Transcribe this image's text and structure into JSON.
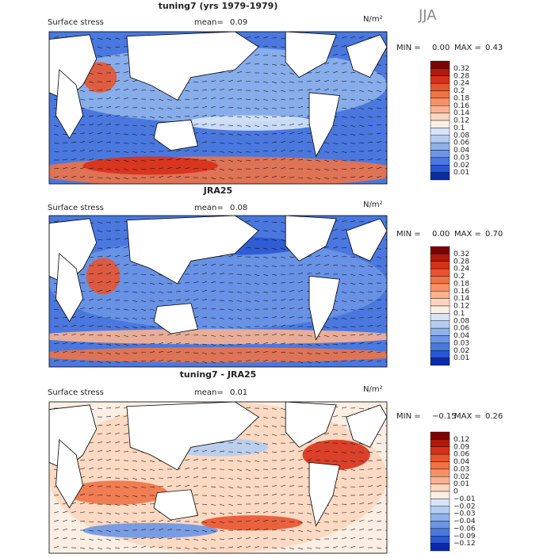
{
  "season": "JJA",
  "panels": [
    {
      "title": "tuning7 (yrs 1979-1979)",
      "field": "Surface stress",
      "mean_label": "mean=",
      "mean": "0.09",
      "units": "N/m²",
      "min_label": "MIN =",
      "min": "0.00",
      "max_label": "MAX =",
      "max": "0.43",
      "levels": [
        "0.32",
        "0.28",
        "0.24",
        "0.2",
        "0.18",
        "0.16",
        "0.14",
        "0.12",
        "0.1",
        "0.08",
        "0.06",
        "0.04",
        "0.03",
        "0.02",
        "0.01"
      ]
    },
    {
      "title": "JRA25",
      "field": "Surface stress",
      "mean_label": "mean=",
      "mean": "0.08",
      "units": "N/m²",
      "min_label": "MIN =",
      "min": "0.00",
      "max_label": "MAX =",
      "max": "0.70",
      "levels": [
        "0.32",
        "0.28",
        "0.24",
        "0.2",
        "0.18",
        "0.16",
        "0.14",
        "0.12",
        "0.1",
        "0.08",
        "0.06",
        "0.04",
        "0.03",
        "0.02",
        "0.01"
      ]
    },
    {
      "title": "tuning7 - JRA25",
      "field": "Surface stress",
      "mean_label": "mean=",
      "mean": "0.01",
      "units": "N/m²",
      "min_label": "MIN =",
      "min": "−0.15",
      "max_label": "MAX =",
      "max": "0.26",
      "levels": [
        "0.12",
        "0.09",
        "0.06",
        "0.04",
        "0.03",
        "0.02",
        "0.01",
        "0",
        "−0.01",
        "−0.02",
        "−0.03",
        "−0.04",
        "−0.06",
        "−0.09",
        "−0.12"
      ]
    }
  ],
  "colors": [
    "#7a0403",
    "#b01a0c",
    "#d73019",
    "#e8542f",
    "#f07246",
    "#f59167",
    "#f9b291",
    "#fcd6bf",
    "#fbeee2",
    "#d7e4f7",
    "#b3cdf2",
    "#8fb2ec",
    "#6c95e6",
    "#4a78df",
    "#2a57d2",
    "#0b2aa8"
  ]
}
